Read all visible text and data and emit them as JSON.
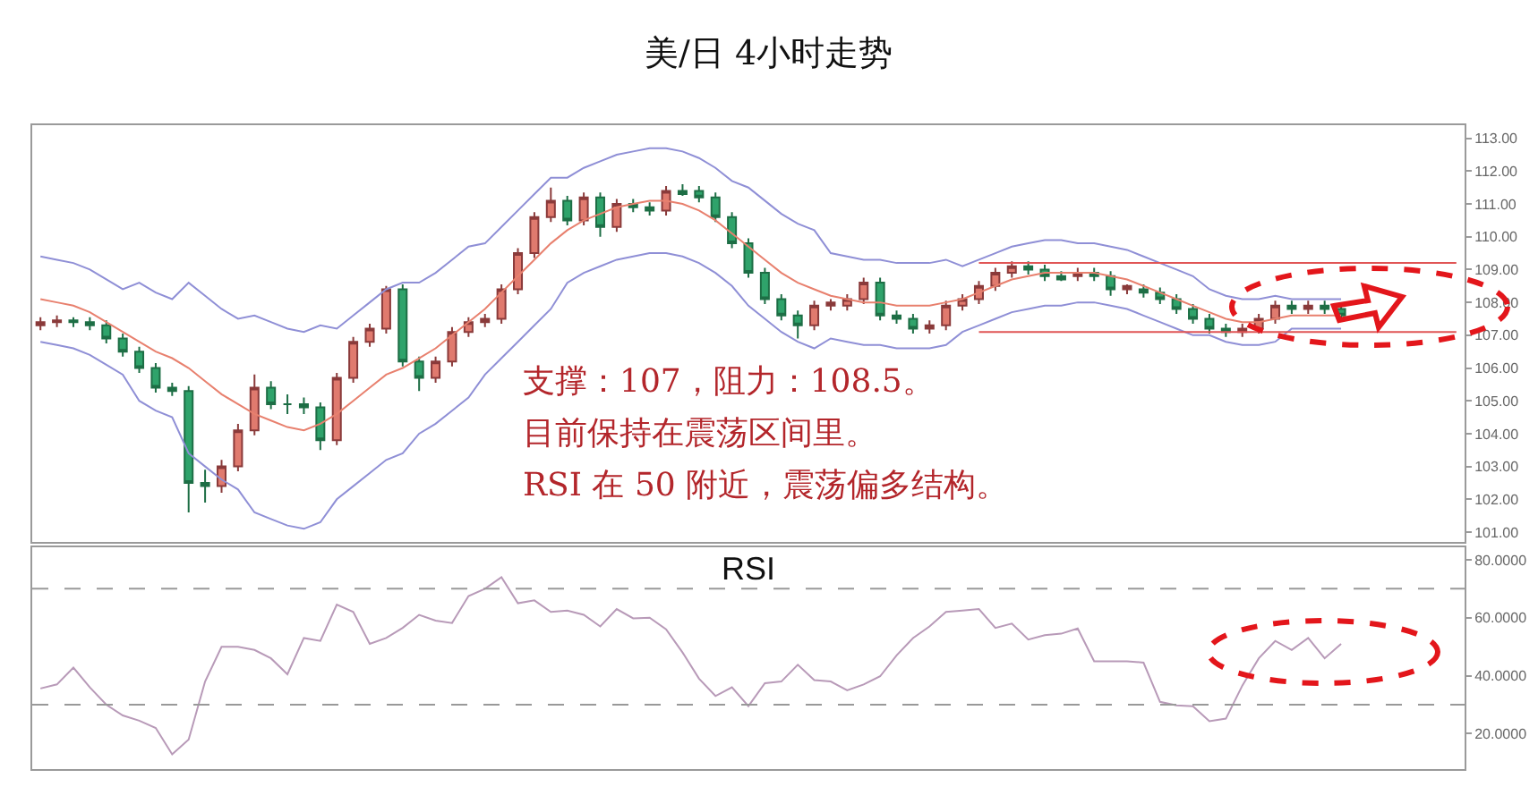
{
  "chart_data": [
    {
      "type": "candlestick",
      "title": "美/日 4小时走势",
      "categories": [
        null,
        null,
        null,
        null,
        null,
        null,
        null,
        null,
        null,
        null,
        null,
        null,
        null,
        null,
        null,
        null,
        null,
        null,
        null,
        null,
        null,
        null,
        null,
        null,
        null,
        null,
        null,
        null,
        null,
        null,
        null,
        null,
        null,
        null,
        null,
        null,
        null,
        null,
        null,
        null,
        null,
        null,
        null,
        null,
        null,
        null,
        null,
        null,
        null,
        null,
        null,
        null,
        null,
        null,
        null,
        null,
        null,
        null,
        null,
        null,
        null,
        null,
        null,
        null,
        null,
        null,
        null,
        null,
        null,
        null,
        null,
        null,
        null,
        null,
        null,
        null,
        null,
        null,
        null,
        null,
        null,
        null,
        null,
        null,
        null,
        null,
        null
      ],
      "ohlc": [
        [
          107.3,
          107.55,
          107.15,
          107.4
        ],
        [
          107.4,
          107.6,
          107.25,
          107.45
        ],
        [
          107.45,
          107.55,
          107.25,
          107.4
        ],
        [
          107.4,
          107.55,
          107.15,
          107.3
        ],
        [
          107.3,
          107.45,
          106.75,
          106.9
        ],
        [
          106.9,
          107.05,
          106.35,
          106.5
        ],
        [
          106.5,
          106.65,
          105.85,
          106.0
        ],
        [
          106.0,
          106.15,
          105.25,
          105.4
        ],
        [
          105.4,
          105.55,
          105.15,
          105.3
        ],
        [
          105.3,
          105.45,
          101.6,
          102.5
        ],
        [
          102.5,
          102.9,
          101.9,
          102.4
        ],
        [
          102.4,
          103.2,
          102.2,
          103.0
        ],
        [
          103.0,
          104.3,
          102.85,
          104.1
        ],
        [
          104.1,
          105.8,
          103.95,
          105.4
        ],
        [
          105.4,
          105.6,
          104.75,
          104.9
        ],
        [
          104.9,
          105.2,
          104.6,
          104.9
        ],
        [
          104.9,
          105.1,
          104.6,
          104.8
        ],
        [
          104.8,
          104.95,
          103.5,
          103.8
        ],
        [
          103.8,
          105.85,
          103.65,
          105.7
        ],
        [
          105.7,
          106.95,
          105.55,
          106.8
        ],
        [
          106.8,
          107.35,
          106.65,
          107.2
        ],
        [
          107.2,
          108.5,
          107.05,
          108.4
        ],
        [
          108.4,
          108.55,
          106.05,
          106.2
        ],
        [
          106.2,
          106.35,
          105.3,
          105.7
        ],
        [
          105.7,
          106.35,
          105.55,
          106.2
        ],
        [
          106.2,
          107.25,
          106.05,
          107.1
        ],
        [
          107.1,
          107.55,
          106.95,
          107.4
        ],
        [
          107.4,
          107.65,
          107.25,
          107.5
        ],
        [
          107.5,
          108.55,
          107.35,
          108.4
        ],
        [
          108.4,
          109.65,
          108.25,
          109.5
        ],
        [
          109.5,
          110.75,
          109.35,
          110.6
        ],
        [
          110.6,
          111.5,
          110.45,
          111.1
        ],
        [
          111.1,
          111.25,
          110.35,
          110.5
        ],
        [
          110.5,
          111.35,
          110.35,
          111.2
        ],
        [
          111.2,
          111.35,
          110.0,
          110.3
        ],
        [
          110.3,
          111.15,
          110.15,
          111.0
        ],
        [
          111.0,
          111.15,
          110.75,
          110.9
        ],
        [
          110.9,
          111.05,
          110.65,
          110.8
        ],
        [
          110.8,
          111.55,
          110.65,
          111.4
        ],
        [
          111.4,
          111.6,
          111.25,
          111.3
        ],
        [
          111.4,
          111.55,
          111.05,
          111.2
        ],
        [
          111.2,
          111.35,
          110.45,
          110.6
        ],
        [
          110.6,
          110.75,
          109.65,
          109.8
        ],
        [
          109.8,
          109.95,
          108.75,
          108.9
        ],
        [
          108.9,
          109.05,
          107.95,
          108.1
        ],
        [
          108.1,
          108.25,
          107.45,
          107.6
        ],
        [
          107.6,
          107.75,
          106.9,
          107.3
        ],
        [
          107.3,
          108.05,
          107.15,
          107.9
        ],
        [
          107.9,
          108.1,
          107.75,
          108.0
        ],
        [
          107.9,
          108.25,
          107.75,
          108.1
        ],
        [
          108.1,
          108.75,
          107.95,
          108.6
        ],
        [
          108.6,
          108.75,
          107.45,
          107.6
        ],
        [
          107.6,
          107.75,
          107.35,
          107.5
        ],
        [
          107.5,
          107.65,
          107.05,
          107.2
        ],
        [
          107.2,
          107.45,
          107.05,
          107.3
        ],
        [
          107.3,
          108.05,
          107.15,
          107.9
        ],
        [
          107.9,
          108.25,
          107.75,
          108.1
        ],
        [
          108.1,
          108.65,
          107.95,
          108.5
        ],
        [
          108.5,
          109.05,
          108.35,
          108.9
        ],
        [
          108.9,
          109.25,
          108.75,
          109.1
        ],
        [
          109.1,
          109.25,
          108.85,
          109.0
        ],
        [
          109.0,
          109.15,
          108.65,
          108.8
        ],
        [
          108.8,
          108.95,
          108.65,
          108.7
        ],
        [
          108.8,
          109.05,
          108.65,
          108.9
        ],
        [
          108.9,
          109.05,
          108.65,
          108.8
        ],
        [
          108.8,
          108.95,
          108.2,
          108.4
        ],
        [
          108.4,
          108.55,
          108.25,
          108.5
        ],
        [
          108.4,
          108.55,
          108.15,
          108.3
        ],
        [
          108.3,
          108.45,
          107.95,
          108.1
        ],
        [
          108.1,
          108.25,
          107.65,
          107.8
        ],
        [
          107.8,
          107.95,
          107.35,
          107.5
        ],
        [
          107.5,
          107.65,
          107.05,
          107.2
        ],
        [
          107.2,
          107.35,
          106.95,
          107.1
        ],
        [
          107.1,
          107.35,
          106.95,
          107.2
        ],
        [
          107.2,
          107.65,
          107.05,
          107.5
        ],
        [
          107.5,
          108.05,
          107.35,
          107.9
        ],
        [
          107.9,
          108.05,
          107.65,
          107.8
        ],
        [
          107.8,
          108.05,
          107.65,
          107.9
        ],
        [
          107.9,
          108.05,
          107.65,
          107.8
        ],
        [
          107.8,
          107.95,
          107.45,
          107.6
        ],
        null,
        null,
        null,
        null,
        null,
        null,
        null
      ],
      "series": [
        {
          "type": "line",
          "color": "#8f8fd6",
          "values": [
            109.4,
            109.3,
            109.2,
            109.0,
            108.7,
            108.4,
            108.6,
            108.3,
            108.1,
            108.6,
            108.2,
            107.8,
            107.5,
            107.6,
            107.4,
            107.2,
            107.1,
            107.3,
            107.2,
            107.6,
            108.0,
            108.4,
            108.6,
            108.6,
            108.9,
            109.3,
            109.7,
            109.8,
            110.3,
            110.8,
            111.3,
            111.8,
            111.8,
            112.1,
            112.3,
            112.5,
            112.6,
            112.7,
            112.7,
            112.6,
            112.4,
            112.1,
            111.7,
            111.5,
            111.1,
            110.7,
            110.4,
            110.2,
            109.5,
            109.4,
            109.3,
            109.3,
            109.2,
            109.2,
            109.2,
            109.3,
            109.1,
            109.3,
            109.5,
            109.7,
            109.8,
            109.9,
            109.9,
            109.8,
            109.8,
            109.7,
            109.6,
            109.4,
            109.2,
            109.0,
            108.8,
            108.4,
            108.2,
            108.1,
            108.1,
            108.2,
            108.1,
            108.1,
            108.1,
            108.1,
            null,
            null,
            null,
            null,
            null,
            null,
            null
          ]
        },
        {
          "type": "line",
          "color": "#e8806e",
          "values": [
            108.1,
            108.0,
            107.9,
            107.7,
            107.4,
            107.1,
            106.8,
            106.5,
            106.3,
            106.0,
            105.6,
            105.2,
            104.9,
            104.6,
            104.4,
            104.2,
            104.1,
            104.3,
            104.6,
            105.0,
            105.4,
            105.8,
            106.0,
            106.3,
            106.6,
            107.0,
            107.4,
            107.8,
            108.3,
            108.8,
            109.3,
            109.8,
            110.2,
            110.5,
            110.7,
            110.9,
            111.0,
            111.1,
            111.1,
            111.0,
            110.8,
            110.5,
            110.1,
            109.7,
            109.3,
            108.9,
            108.6,
            108.4,
            108.2,
            108.1,
            108.0,
            108.0,
            107.9,
            107.9,
            107.9,
            108.0,
            108.1,
            108.3,
            108.5,
            108.7,
            108.8,
            108.9,
            108.9,
            108.9,
            108.9,
            108.8,
            108.7,
            108.5,
            108.3,
            108.1,
            107.9,
            107.7,
            107.5,
            107.4,
            107.4,
            107.5,
            107.6,
            107.6,
            107.6,
            107.6,
            null,
            null,
            null,
            null,
            null,
            null,
            null
          ]
        },
        {
          "type": "line",
          "color": "#8f8fd6",
          "values": [
            106.8,
            106.7,
            106.6,
            106.4,
            106.1,
            105.8,
            105.0,
            104.7,
            104.5,
            103.4,
            103.0,
            102.6,
            102.3,
            101.6,
            101.4,
            101.2,
            101.1,
            101.3,
            102.0,
            102.4,
            102.8,
            103.2,
            103.4,
            104.0,
            104.3,
            104.7,
            105.1,
            105.8,
            106.3,
            106.8,
            107.3,
            107.8,
            108.6,
            108.9,
            109.1,
            109.3,
            109.4,
            109.5,
            109.5,
            109.4,
            109.2,
            108.9,
            108.5,
            107.9,
            107.5,
            107.1,
            106.8,
            106.6,
            106.9,
            106.8,
            106.7,
            106.7,
            106.6,
            106.6,
            106.6,
            106.7,
            107.1,
            107.3,
            107.5,
            107.7,
            107.8,
            107.9,
            107.9,
            108.0,
            108.0,
            107.9,
            107.8,
            107.6,
            107.4,
            107.2,
            107.0,
            107.0,
            106.8,
            106.7,
            106.7,
            106.8,
            107.2,
            107.2,
            107.2,
            107.2,
            null,
            null,
            null,
            null,
            null,
            null,
            null
          ]
        },
        {
          "type": "line",
          "color": "#e05555",
          "values": [
            null,
            null,
            null,
            null,
            null,
            null,
            null,
            null,
            null,
            null,
            null,
            null,
            null,
            null,
            null,
            null,
            null,
            null,
            null,
            null,
            null,
            null,
            null,
            null,
            null,
            null,
            null,
            null,
            null,
            null,
            null,
            null,
            null,
            null,
            null,
            null,
            null,
            null,
            null,
            null,
            null,
            null,
            null,
            null,
            null,
            null,
            null,
            null,
            null,
            null,
            null,
            null,
            null,
            null,
            null,
            null,
            null,
            109.2,
            109.2,
            109.2,
            109.2,
            109.2,
            109.2,
            109.2,
            109.2,
            109.2,
            109.2,
            109.2,
            109.2,
            109.2,
            109.2,
            109.2,
            109.2,
            109.2,
            109.2,
            109.2,
            109.2,
            109.2,
            109.2,
            109.2,
            109.2,
            109.2,
            109.2,
            109.2,
            109.2,
            109.2,
            109.2
          ]
        },
        {
          "type": "line",
          "color": "#e05555",
          "values": [
            null,
            null,
            null,
            null,
            null,
            null,
            null,
            null,
            null,
            null,
            null,
            null,
            null,
            null,
            null,
            null,
            null,
            null,
            null,
            null,
            null,
            null,
            null,
            null,
            null,
            null,
            null,
            null,
            null,
            null,
            null,
            null,
            null,
            null,
            null,
            null,
            null,
            null,
            null,
            null,
            null,
            null,
            null,
            null,
            null,
            null,
            null,
            null,
            null,
            null,
            null,
            null,
            null,
            null,
            null,
            null,
            null,
            107.1,
            107.1,
            107.1,
            107.1,
            107.1,
            107.1,
            107.1,
            107.1,
            107.1,
            107.1,
            107.1,
            107.1,
            107.1,
            107.1,
            107.1,
            107.1,
            107.1,
            107.1,
            107.1,
            107.1,
            107.1,
            107.1,
            107.1,
            107.1,
            107.1,
            107.1,
            107.1,
            107.1,
            107.1,
            107.1
          ]
        }
      ],
      "ylim": [
        100.7,
        113.4
      ],
      "yticks": [
        {
          "value": 101,
          "label": "101.00"
        },
        {
          "value": 102,
          "label": "102.00"
        },
        {
          "value": 103,
          "label": "103.00"
        },
        {
          "value": 104,
          "label": "104.00"
        },
        {
          "value": 105,
          "label": "105.00"
        },
        {
          "value": 106,
          "label": "106.00"
        },
        {
          "value": 107,
          "label": "107.00"
        },
        {
          "value": 108,
          "label": "108.00"
        },
        {
          "value": 109,
          "label": "109.00"
        },
        {
          "value": 110,
          "label": "110.00"
        },
        {
          "value": 111,
          "label": "111.00"
        },
        {
          "value": 112,
          "label": "112.00"
        },
        {
          "value": 113,
          "label": "113.00"
        }
      ],
      "tick_labels": "y",
      "annotations": [
        "支撑：107，阻力：108.5。",
        "目前保持在震荡区间里。",
        "RSI 在 50 附近，震荡偏多结构。"
      ]
    },
    {
      "type": "line",
      "title": "RSI",
      "categories": [
        null,
        null,
        null,
        null,
        null,
        null,
        null,
        null,
        null,
        null,
        null,
        null,
        null,
        null,
        null,
        null,
        null,
        null,
        null,
        null,
        null,
        null,
        null,
        null,
        null,
        null,
        null,
        null,
        null,
        null,
        null,
        null,
        null,
        null,
        null,
        null,
        null,
        null,
        null,
        null,
        null,
        null,
        null,
        null,
        null,
        null,
        null,
        null,
        null,
        null,
        null,
        null,
        null,
        null,
        null,
        null,
        null,
        null,
        null,
        null,
        null,
        null,
        null,
        null,
        null,
        null,
        null,
        null,
        null,
        null,
        null,
        null,
        null,
        null,
        null,
        null,
        null,
        null,
        null,
        null,
        null,
        null,
        null,
        null,
        null,
        null,
        null
      ],
      "series": [
        {
          "color": "#b89ab8",
          "values": [
            35.6,
            37,
            42.8,
            36,
            30,
            26.3,
            24.5,
            22,
            12.9,
            18,
            38,
            50,
            50,
            48.9,
            46,
            40.5,
            53,
            52,
            64.5,
            62,
            51,
            53,
            56.5,
            61,
            59,
            58.2,
            67.5,
            70,
            74,
            65,
            66,
            62,
            62.5,
            61,
            57,
            63,
            59.8,
            60,
            56,
            48,
            39,
            33,
            36,
            29.5,
            37.4,
            38,
            43.8,
            38.5,
            38,
            35,
            37,
            39.8,
            47,
            53,
            57,
            62,
            62.5,
            63,
            56.5,
            58,
            52.5,
            54,
            54.5,
            56.3,
            45,
            45,
            45,
            44.5,
            31,
            29.8,
            29.5,
            24.3,
            25.2,
            36.6,
            46,
            52,
            48.9,
            53,
            46,
            51,
            null,
            null,
            null,
            null,
            null,
            null,
            null
          ]
        }
      ],
      "ylim": [
        7.8,
        84.3
      ],
      "yticks": [
        {
          "value": 20,
          "label": "20.0000"
        },
        {
          "value": 40,
          "label": "40.0000"
        },
        {
          "value": 60,
          "label": "60.0000"
        },
        {
          "value": 80,
          "label": "80.0000"
        }
      ],
      "ref_lines": [
        {
          "axis": "y",
          "value": 70,
          "color": "#999999",
          "line_style": "dashed"
        },
        {
          "axis": "y",
          "value": 30,
          "color": "#999999",
          "line_style": "dashed"
        }
      ],
      "tick_labels": "y"
    }
  ]
}
